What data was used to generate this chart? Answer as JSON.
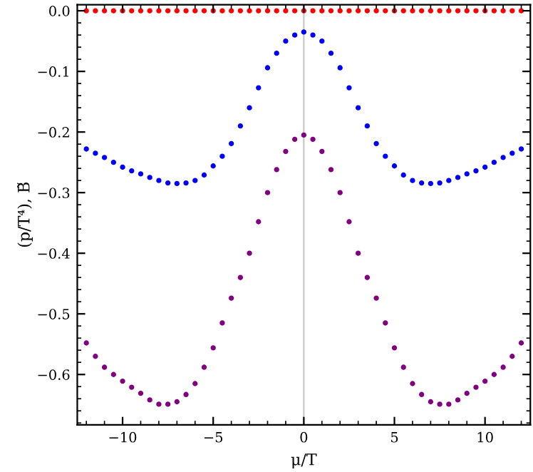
{
  "chart_data": {
    "type": "scatter",
    "xlabel": "μ/T",
    "ylabel": "(p/T⁴), B̃",
    "x": [
      -12,
      -11.5,
      -11,
      -10.5,
      -10,
      -9.5,
      -9,
      -8.5,
      -8,
      -7.5,
      -7,
      -6.5,
      -6,
      -5.5,
      -5,
      -4.5,
      -4,
      -3.5,
      -3,
      -2.5,
      -2,
      -1.5,
      -1,
      -0.5,
      0,
      0.5,
      1,
      1.5,
      2,
      2.5,
      3,
      3.5,
      4,
      4.5,
      5,
      5.5,
      6,
      6.5,
      7,
      7.5,
      8,
      8.5,
      9,
      9.5,
      10,
      10.5,
      11,
      11.5,
      12
    ],
    "series": [
      {
        "color": "#ff0000",
        "values": [
          0,
          0,
          0,
          0,
          0,
          0,
          0,
          0,
          0,
          0,
          0,
          0,
          0,
          0,
          0,
          0,
          0,
          0,
          0,
          0,
          0,
          0,
          0,
          0,
          0,
          0,
          0,
          0,
          0,
          0,
          0,
          0,
          0,
          0,
          0,
          0,
          0,
          0,
          0,
          0,
          0,
          0,
          0,
          0,
          0,
          0,
          0,
          0,
          0
        ]
      },
      {
        "color": "#0000ff",
        "values": [
          -0.228,
          -0.235,
          -0.242,
          -0.25,
          -0.258,
          -0.264,
          -0.269,
          -0.275,
          -0.28,
          -0.284,
          -0.285,
          -0.284,
          -0.28,
          -0.271,
          -0.256,
          -0.24,
          -0.219,
          -0.19,
          -0.16,
          -0.127,
          -0.094,
          -0.07,
          -0.05,
          -0.04,
          -0.035,
          -0.04,
          -0.05,
          -0.07,
          -0.094,
          -0.127,
          -0.16,
          -0.19,
          -0.219,
          -0.24,
          -0.256,
          -0.271,
          -0.28,
          -0.284,
          -0.285,
          -0.284,
          -0.28,
          -0.275,
          -0.269,
          -0.264,
          -0.258,
          -0.25,
          -0.242,
          -0.235,
          -0.228
        ]
      },
      {
        "color": "#800080",
        "values": [
          -0.548,
          -0.57,
          -0.588,
          -0.6,
          -0.611,
          -0.621,
          -0.631,
          -0.642,
          -0.649,
          -0.649,
          -0.645,
          -0.633,
          -0.615,
          -0.588,
          -0.556,
          -0.515,
          -0.474,
          -0.44,
          -0.4,
          -0.348,
          -0.3,
          -0.262,
          -0.232,
          -0.212,
          -0.205,
          -0.212,
          -0.232,
          -0.262,
          -0.3,
          -0.348,
          -0.4,
          -0.44,
          -0.474,
          -0.515,
          -0.556,
          -0.588,
          -0.615,
          -0.633,
          -0.645,
          -0.649,
          -0.649,
          -0.642,
          -0.631,
          -0.621,
          -0.611,
          -0.6,
          -0.588,
          -0.57,
          -0.548
        ]
      }
    ],
    "xlim": [
      -12.5,
      12.5
    ],
    "ylim": [
      -0.683,
      0.01
    ],
    "xticks": [
      {
        "value": -10,
        "label": "−10"
      },
      {
        "value": -5,
        "label": "−5"
      },
      0,
      5,
      10
    ],
    "yticks": [
      {
        "value": 0,
        "label": "0.0"
      },
      {
        "value": -0.1,
        "label": "−0.1"
      },
      {
        "value": -0.2,
        "label": "−0.2"
      },
      {
        "value": -0.3,
        "label": "−0.3"
      },
      {
        "value": -0.4,
        "label": "−0.4"
      },
      {
        "value": -0.5,
        "label": "−0.5"
      },
      {
        "value": -0.6,
        "label": "−0.6"
      }
    ],
    "ref_lines": [
      {
        "axis": "x",
        "value": 0,
        "color": "#c8c8c8"
      }
    ],
    "marker": "circle",
    "grid": false
  }
}
